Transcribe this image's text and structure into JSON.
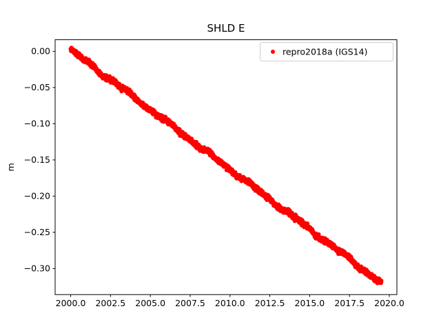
{
  "figure": {
    "title": "SHLD E",
    "ylabel": "m",
    "legend": {
      "label": "repro2018a (IGS14)",
      "marker_color": "#ff0000"
    }
  },
  "chart_data": {
    "type": "scatter",
    "title": "SHLD E",
    "xlabel": "",
    "ylabel": "m",
    "grid": false,
    "legend_position": "upper right",
    "background_color": "#ffffff",
    "axes_edge_color": "#000000",
    "xlim": [
      1999.025,
      2020.475
    ],
    "ylim": [
      -0.336,
      0.016
    ],
    "x_ticks": [
      2000.0,
      2002.5,
      2005.0,
      2007.5,
      2010.0,
      2012.5,
      2015.0,
      2017.5,
      2020.0
    ],
    "x_tick_labels": [
      "2000.0",
      "2002.5",
      "2005.0",
      "2007.5",
      "2010.0",
      "2012.5",
      "2015.0",
      "2017.5",
      "2020.0"
    ],
    "y_ticks": [
      0.0,
      -0.05,
      -0.1,
      -0.15,
      -0.2,
      -0.25,
      -0.3
    ],
    "y_tick_labels": [
      "0.00",
      "−0.05",
      "−0.10",
      "−0.15",
      "−0.20",
      "−0.25",
      "−0.30"
    ],
    "series": [
      {
        "name": "repro2018a (IGS14)",
        "color": "#ff0000",
        "marker": "dot",
        "marker_radius_px": 3,
        "trend": {
          "x_start": 2000.0,
          "x_end": 2019.5,
          "y_start": 0.002,
          "y_end": -0.32,
          "slope_m_per_yr": -0.0165,
          "noise_sd": 0.0035,
          "n_points": 2000
        },
        "sample_points": {
          "x": [
            2000.0,
            2001.0,
            2002.0,
            2003.0,
            2004.0,
            2005.0,
            2006.0,
            2007.0,
            2008.0,
            2009.0,
            2010.0,
            2011.0,
            2012.0,
            2013.0,
            2014.0,
            2015.0,
            2016.0,
            2017.0,
            2018.0,
            2019.0,
            2019.5
          ],
          "y": [
            0.0,
            -0.017,
            -0.033,
            -0.049,
            -0.066,
            -0.082,
            -0.098,
            -0.115,
            -0.131,
            -0.148,
            -0.164,
            -0.18,
            -0.197,
            -0.213,
            -0.229,
            -0.246,
            -0.262,
            -0.278,
            -0.295,
            -0.311,
            -0.32
          ]
        }
      }
    ]
  }
}
